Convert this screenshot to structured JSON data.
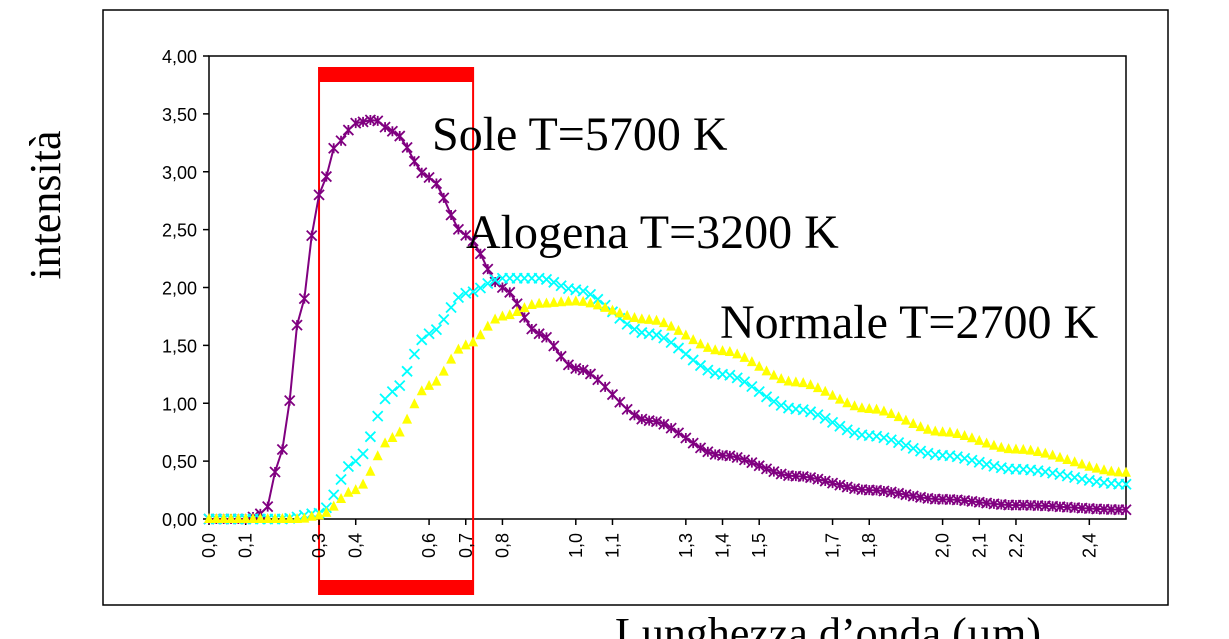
{
  "chart_data": {
    "type": "scatter",
    "title": "",
    "xlabel": "Lunghezza d’onda (µm)",
    "ylabel": "intensità",
    "ylim": [
      0,
      4
    ],
    "xlim": [
      0,
      2.5
    ],
    "grid": false,
    "y_ticks": [
      "0,00",
      "0,50",
      "1,00",
      "1,50",
      "2,00",
      "2,50",
      "3,00",
      "3,50",
      "4,00"
    ],
    "x_ticks": [
      "0,0",
      "0,1",
      "0,3",
      "0,4",
      "0,6",
      "0,7",
      "0,8",
      "1,0",
      "1,1",
      "1,3",
      "1,4",
      "1,5",
      "1,7",
      "1,8",
      "2,0",
      "2,1",
      "2,2",
      "2,4"
    ],
    "x_tick_values": [
      0.0,
      0.1,
      0.3,
      0.4,
      0.6,
      0.7,
      0.8,
      1.0,
      1.1,
      1.3,
      1.4,
      1.5,
      1.7,
      1.8,
      2.0,
      2.1,
      2.2,
      2.4
    ],
    "annotations": [
      {
        "text": "Sole T=5700 K",
        "color": "#000000"
      },
      {
        "text": "Alogena T=3200 K",
        "color": "#000000"
      },
      {
        "text": "Normale T=2700 K",
        "color": "#000000"
      }
    ],
    "visible_band": {
      "x_from": 0.3,
      "x_to": 0.72,
      "color": "#ff0000"
    },
    "series": [
      {
        "key": "sole",
        "color": "#800080",
        "marker": "star",
        "line": true,
        "peak_x": 0.47,
        "peak_y": 3.45,
        "x": [
          0.1,
          0.15,
          0.2,
          0.25,
          0.3,
          0.35,
          0.4,
          0.45,
          0.5,
          0.6,
          0.7,
          0.8,
          0.9,
          1.0,
          1.2,
          1.4,
          1.6,
          1.8,
          2.0,
          2.2,
          2.5
        ],
        "y": [
          0.0,
          0.05,
          0.6,
          1.8,
          2.8,
          3.25,
          3.42,
          3.45,
          3.35,
          2.95,
          2.45,
          2.0,
          1.6,
          1.3,
          0.85,
          0.55,
          0.37,
          0.25,
          0.17,
          0.12,
          0.08
        ]
      },
      {
        "key": "alogena",
        "color": "#00ffff",
        "marker": "x",
        "line": false,
        "peak_x": 0.85,
        "peak_y": 2.1,
        "x": [
          0.2,
          0.3,
          0.4,
          0.5,
          0.6,
          0.7,
          0.8,
          0.9,
          1.0,
          1.2,
          1.4,
          1.6,
          1.8,
          2.0,
          2.2,
          2.5
        ],
        "y": [
          0.0,
          0.05,
          0.5,
          1.1,
          1.6,
          1.95,
          2.08,
          2.08,
          1.98,
          1.6,
          1.25,
          0.95,
          0.72,
          0.55,
          0.43,
          0.3
        ]
      },
      {
        "key": "normale",
        "color": "#ffff00",
        "marker": "triangle",
        "line": false,
        "peak_x": 1.0,
        "peak_y": 1.88,
        "x": [
          0.25,
          0.3,
          0.4,
          0.5,
          0.6,
          0.7,
          0.8,
          0.9,
          1.0,
          1.2,
          1.4,
          1.6,
          1.8,
          2.0,
          2.2,
          2.5
        ],
        "y": [
          0.0,
          0.03,
          0.25,
          0.7,
          1.15,
          1.5,
          1.75,
          1.86,
          1.88,
          1.72,
          1.45,
          1.18,
          0.95,
          0.75,
          0.6,
          0.4
        ]
      }
    ]
  }
}
